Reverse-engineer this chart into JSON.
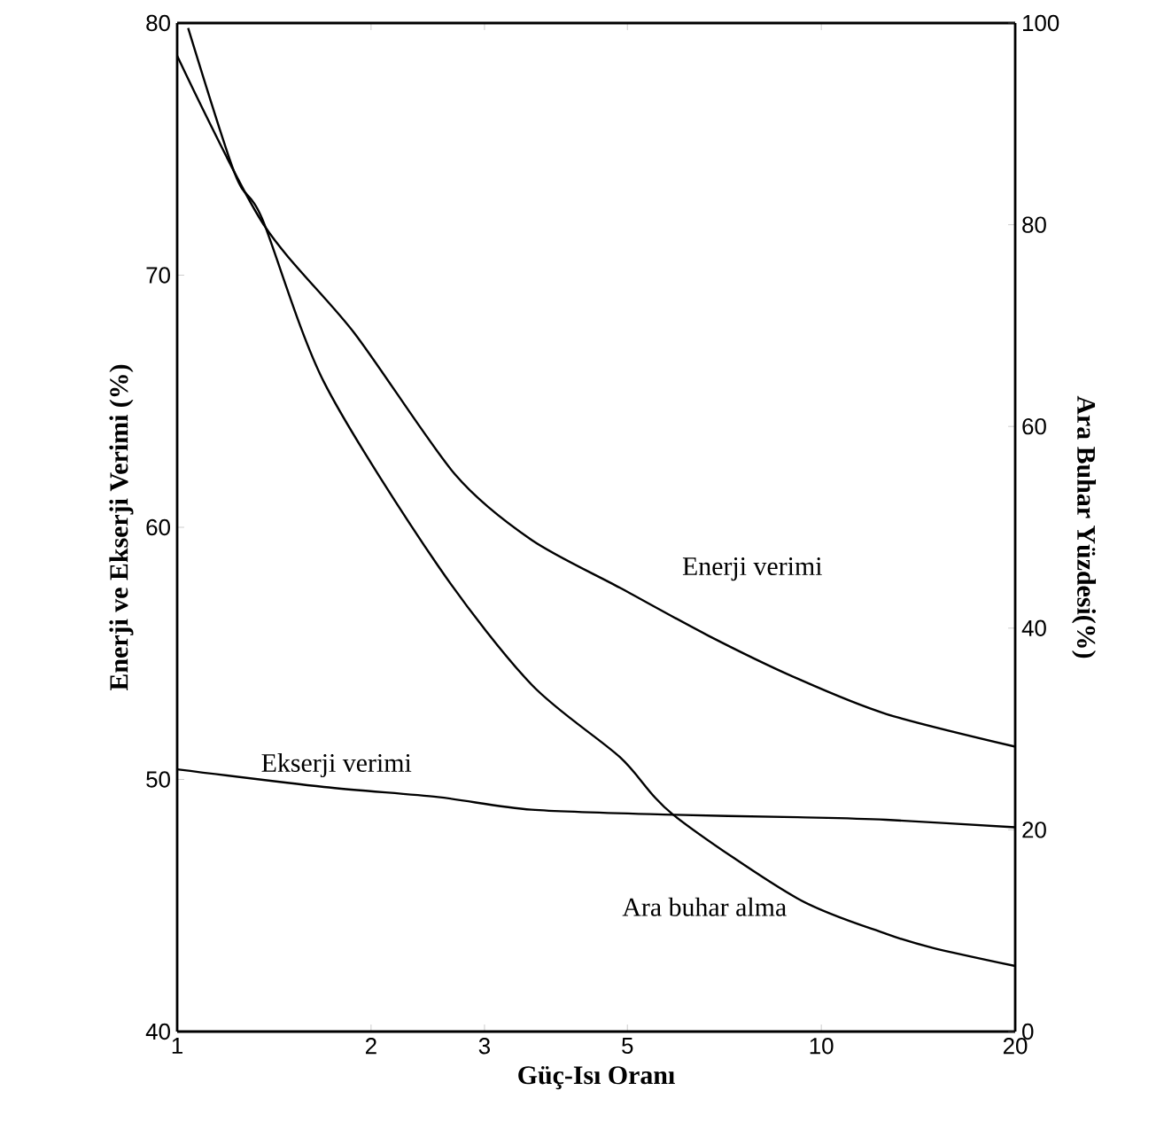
{
  "chart_data": {
    "type": "line",
    "xlabel": "Güç-Isı Oranı",
    "ylabel": "Enerji ve Ekserji Verimi (%)",
    "y2label": "Ara Buhar Yüzdesi(%)",
    "log": "x",
    "xlim": [
      1,
      20
    ],
    "xticks": [
      1,
      2,
      3,
      5,
      10,
      20
    ],
    "ylim": [
      40,
      80
    ],
    "yticks": [
      40,
      50,
      60,
      70,
      80
    ],
    "y2lim": [
      0,
      100
    ],
    "y2ticks": [
      0,
      20,
      40,
      60,
      80,
      100
    ],
    "grid": false,
    "legend": false,
    "marker": "none",
    "line_style": "solid",
    "series": [
      {
        "name": "Enerji verimi",
        "color": "#000000",
        "x": [
          1,
          1.355,
          1.885,
          2.7,
          3.55,
          4.87,
          6.68,
          9.18,
          12.6,
          20
        ],
        "values": [
          78.7,
          72.1,
          67.7,
          62.1,
          59.5,
          57.6,
          55.7,
          54.0,
          52.6,
          51.3
        ]
      },
      {
        "name": "Ekserji verimi",
        "color": "#000000",
        "x": [
          1,
          1.69,
          2.54,
          3.55,
          5.89,
          9.18,
          12.6,
          20
        ],
        "values": [
          50.4,
          49.7,
          49.3,
          48.8,
          48.6,
          48.5,
          48.4,
          48.1
        ]
      },
      {
        "name": "Ara buhar alma",
        "color": "#000000",
        "axis": "y2",
        "x": [
          1.04,
          1.23,
          1.355,
          1.69,
          2.54,
          3.55,
          4.87,
          5.89,
          9.18,
          12.6,
          14.9,
          20
        ],
        "values": [
          99.5,
          85.0,
          80.6,
          64.4,
          46.2,
          34.4,
          27.2,
          21.5,
          13.2,
          9.7,
          8.3,
          6.5
        ]
      }
    ]
  }
}
